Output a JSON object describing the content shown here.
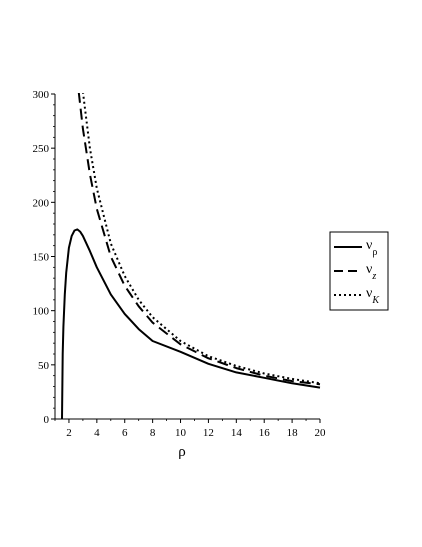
{
  "chart_data": {
    "type": "line",
    "title": "",
    "xlabel": "ρ",
    "ylabel": "",
    "xlim": [
      1,
      20
    ],
    "ylim": [
      0,
      300
    ],
    "xticks": [
      "2",
      "4",
      "6",
      "8",
      "10",
      "12",
      "14",
      "16",
      "18",
      "20"
    ],
    "yticks": [
      "0",
      "50",
      "100",
      "150",
      "200",
      "250",
      "300"
    ],
    "grid": false,
    "legend_position": "right",
    "series": [
      {
        "name": "νρ",
        "name_base": "ν",
        "name_sub": "ρ",
        "style": "solid",
        "x": [
          1.5,
          1.55,
          1.6,
          1.7,
          1.8,
          2.0,
          2.2,
          2.4,
          2.6,
          2.8,
          3.0,
          3.5,
          4.0,
          5.0,
          6.0,
          7.0,
          8.0,
          10.0,
          12.0,
          14.0,
          16.0,
          18.0,
          20.0
        ],
        "values": [
          0,
          60,
          85,
          115,
          135,
          158,
          169,
          174,
          175,
          173,
          169,
          155,
          140,
          115,
          97,
          83,
          72,
          62,
          51,
          43,
          38,
          33,
          29
        ]
      },
      {
        "name": "νz",
        "name_base": "ν",
        "name_sub": "z",
        "style": "dashed",
        "x": [
          2.7,
          3.0,
          3.5,
          4.0,
          5.0,
          6.0,
          7.0,
          8.0,
          10.0,
          12.0,
          14.0,
          16.0,
          18.0,
          20.0
        ],
        "values": [
          302,
          268,
          226,
          194,
          150,
          123,
          104,
          89,
          69,
          56,
          47,
          40,
          35,
          32
        ]
      },
      {
        "name": "νK",
        "name_base": "ν",
        "name_sub": "K",
        "style": "dotted",
        "x": [
          3.0,
          3.5,
          4.0,
          5.0,
          6.0,
          7.0,
          8.0,
          10.0,
          12.0,
          14.0,
          16.0,
          18.0,
          20.0
        ],
        "values": [
          302,
          250,
          213,
          162,
          132,
          110,
          94,
          72,
          58,
          49,
          42,
          37,
          33
        ]
      }
    ]
  }
}
